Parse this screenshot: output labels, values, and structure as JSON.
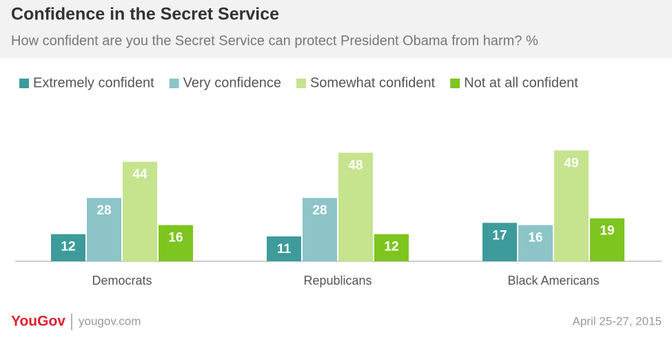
{
  "chart_data": {
    "type": "bar",
    "title": "Confidence in the Secret Service",
    "subtitle": "How confident are you the Secret Service can protect President Obama from harm? %",
    "categories": [
      "Democrats",
      "Republicans",
      "Black Americans"
    ],
    "series": [
      {
        "name": "Extremely confident",
        "color": "#3e9b9c",
        "values": [
          12,
          11,
          17
        ]
      },
      {
        "name": "Very confidence",
        "color": "#8cc4c8",
        "values": [
          28,
          28,
          16
        ]
      },
      {
        "name": "Somewhat confident",
        "color": "#c6e38e",
        "values": [
          44,
          48,
          49
        ]
      },
      {
        "name": "Not at all confident",
        "color": "#7ec520",
        "values": [
          16,
          12,
          19
        ]
      }
    ],
    "ylim": [
      0,
      50
    ]
  },
  "footer": {
    "brand": "YouGov",
    "url": "yougov.com",
    "date": "April 25-27, 2015"
  }
}
